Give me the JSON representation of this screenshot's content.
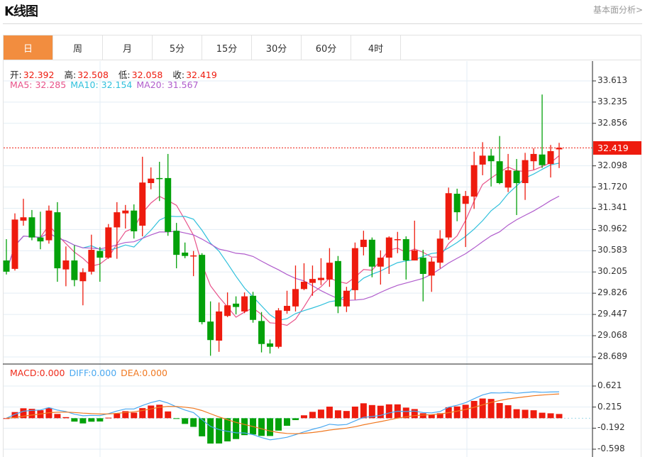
{
  "header": {
    "title": "K线图",
    "link": "基本面分析>"
  },
  "tabs": [
    {
      "label": "日",
      "active": true
    },
    {
      "label": "周"
    },
    {
      "label": "月"
    },
    {
      "label": "5分"
    },
    {
      "label": "15分"
    },
    {
      "label": "30分"
    },
    {
      "label": "60分"
    },
    {
      "label": "4时"
    }
  ],
  "ohlc": {
    "open_label": "开:",
    "open": "32.392",
    "high_label": "高:",
    "high": "32.508",
    "low_label": "低:",
    "low": "32.058",
    "close_label": "收:",
    "close": "32.419"
  },
  "ma": {
    "ma5": "MA5: 32.285",
    "ma10": "MA10: 32.154",
    "ma20": "MA20: 31.567"
  },
  "macd_legend": {
    "macd": "MACD:0.000",
    "diff": "DIFF:0.000",
    "dea": "DEA:0.000"
  },
  "last_price": "32.419",
  "colors": {
    "up": "#ee1b0e",
    "down": "#03a10a",
    "ma5": "#e8528a",
    "ma10": "#2fc0dc",
    "ma20": "#b05ccc",
    "diff": "#4aa8f0",
    "dea": "#f07820",
    "tab_active": "#f28d3f"
  },
  "chart_data": {
    "type": "candlestick",
    "price_axis": {
      "ticks": [
        "33.613",
        "33.235",
        "32.856",
        "32.098",
        "31.720",
        "31.341",
        "30.962",
        "30.583",
        "30.205",
        "29.826",
        "29.447",
        "29.068",
        "28.689"
      ],
      "range": [
        28.689,
        33.613
      ]
    },
    "macd_axis": {
      "ticks": [
        "0.621",
        "0.215",
        "-0.192",
        "-0.598"
      ],
      "range": [
        -0.598,
        0.621
      ]
    },
    "candles_ochl_order": "open,close,high,low",
    "candles": [
      [
        30.41,
        30.21,
        30.79,
        30.16
      ],
      [
        30.26,
        31.14,
        31.25,
        30.23
      ],
      [
        31.12,
        31.18,
        31.51,
        31.03
      ],
      [
        31.18,
        30.82,
        31.31,
        30.77
      ],
      [
        30.82,
        30.75,
        31.28,
        30.61
      ],
      [
        30.77,
        31.3,
        31.39,
        30.71
      ],
      [
        31.27,
        30.27,
        31.45,
        30.03
      ],
      [
        30.25,
        30.41,
        30.66,
        29.95
      ],
      [
        30.41,
        30.06,
        30.68,
        29.95
      ],
      [
        30.04,
        30.2,
        30.27,
        29.61
      ],
      [
        30.21,
        30.6,
        30.87,
        30.16
      ],
      [
        30.58,
        30.46,
        30.65,
        30.03
      ],
      [
        30.46,
        31.0,
        31.06,
        30.44
      ],
      [
        31.0,
        31.27,
        31.45,
        30.44
      ],
      [
        31.25,
        31.3,
        31.4,
        30.98
      ],
      [
        31.3,
        30.93,
        31.41,
        30.8
      ],
      [
        31.03,
        31.8,
        32.26,
        30.84
      ],
      [
        31.79,
        31.87,
        32.07,
        31.68
      ],
      [
        31.88,
        31.87,
        32.17,
        31.47
      ],
      [
        31.88,
        30.92,
        32.31,
        30.85
      ],
      [
        30.94,
        30.51,
        31.08,
        30.27
      ],
      [
        30.55,
        30.49,
        30.73,
        30.45
      ],
      [
        30.49,
        30.5,
        30.58,
        30.13
      ],
      [
        30.51,
        29.31,
        30.54,
        29.27
      ],
      [
        29.32,
        28.99,
        29.68,
        28.71
      ],
      [
        28.98,
        29.5,
        29.66,
        28.78
      ],
      [
        29.42,
        29.61,
        29.84,
        29.4
      ],
      [
        29.64,
        29.58,
        29.77,
        29.45
      ],
      [
        29.5,
        29.77,
        29.84,
        29.47
      ],
      [
        29.78,
        29.35,
        29.85,
        29.3
      ],
      [
        29.33,
        28.92,
        29.49,
        28.77
      ],
      [
        28.93,
        28.87,
        29.0,
        28.75
      ],
      [
        28.87,
        29.52,
        29.56,
        28.84
      ],
      [
        29.51,
        29.6,
        29.87,
        29.46
      ],
      [
        29.59,
        29.9,
        30.32,
        29.5
      ],
      [
        29.9,
        30.03,
        30.36,
        29.88
      ],
      [
        30.01,
        30.08,
        30.32,
        29.78
      ],
      [
        30.06,
        30.1,
        30.45,
        29.97
      ],
      [
        30.07,
        30.37,
        30.63,
        29.94
      ],
      [
        30.4,
        29.59,
        30.49,
        29.47
      ],
      [
        29.59,
        29.87,
        29.94,
        29.49
      ],
      [
        29.88,
        30.63,
        30.73,
        29.71
      ],
      [
        30.65,
        30.78,
        30.94,
        30.5
      ],
      [
        30.78,
        30.3,
        30.82,
        30.11
      ],
      [
        30.3,
        30.46,
        30.59,
        29.98
      ],
      [
        30.46,
        30.82,
        30.84,
        30.17
      ],
      [
        30.78,
        30.79,
        30.92,
        30.54
      ],
      [
        30.79,
        30.41,
        30.84,
        30.07
      ],
      [
        30.41,
        30.59,
        31.12,
        30.41
      ],
      [
        30.46,
        30.17,
        30.6,
        29.68
      ],
      [
        30.14,
        30.39,
        30.46,
        29.85
      ],
      [
        30.37,
        30.8,
        30.95,
        30.27
      ],
      [
        30.82,
        31.61,
        31.71,
        30.78
      ],
      [
        31.6,
        31.27,
        31.69,
        31.11
      ],
      [
        31.42,
        31.56,
        31.65,
        30.65
      ],
      [
        31.55,
        32.11,
        32.35,
        31.33
      ],
      [
        32.12,
        32.28,
        32.52,
        31.93
      ],
      [
        32.28,
        32.18,
        32.4,
        31.73
      ],
      [
        32.18,
        31.79,
        32.63,
        31.77
      ],
      [
        31.71,
        32.02,
        32.31,
        31.63
      ],
      [
        32.01,
        31.79,
        32.22,
        31.22
      ],
      [
        31.79,
        32.2,
        32.33,
        31.49
      ],
      [
        32.18,
        32.31,
        32.41,
        32.03
      ],
      [
        32.3,
        32.11,
        33.37,
        32.06
      ],
      [
        32.13,
        32.36,
        32.47,
        31.89
      ],
      [
        32.392,
        32.419,
        32.508,
        32.058
      ]
    ]
  }
}
